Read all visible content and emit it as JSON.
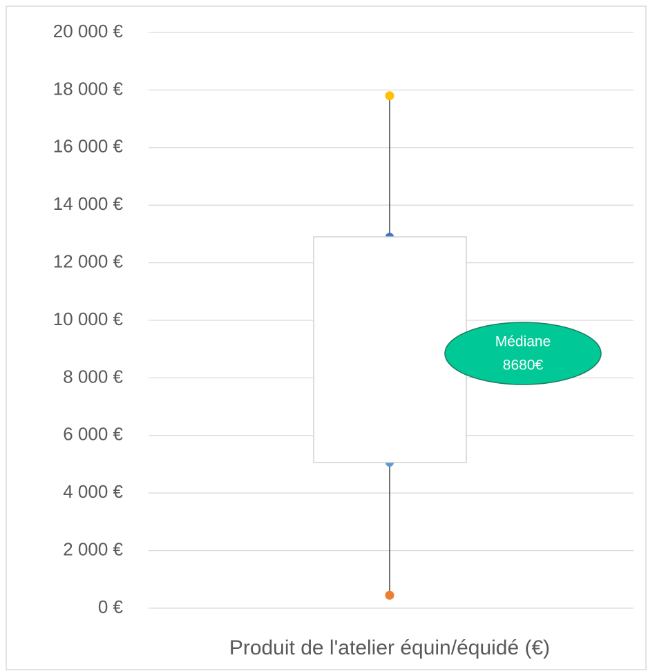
{
  "chart_data": {
    "type": "box",
    "categories": [
      "Produit de l'atelier équin/équidé (€)"
    ],
    "series": [
      {
        "min": 450,
        "q1": 5060,
        "q3": 12900,
        "max": 17800,
        "colors": {
          "min": "#ed7d31",
          "q1": "#5b9bd5",
          "q3": "#4472c4",
          "max": "#ffc000"
        },
        "box_color": "#ffffff",
        "whisker_color": "#404040"
      }
    ],
    "ylim": [
      0,
      20000
    ],
    "yticks": [
      {
        "value": 0,
        "label": "0 €"
      },
      {
        "value": 2000,
        "label": "2 000 €"
      },
      {
        "value": 4000,
        "label": "4 000 €"
      },
      {
        "value": 6000,
        "label": "6 000 €"
      },
      {
        "value": 8000,
        "label": "8 000 €"
      },
      {
        "value": 10000,
        "label": "10 000 €"
      },
      {
        "value": 12000,
        "label": "12 000 €"
      },
      {
        "value": 14000,
        "label": "14 000 €"
      },
      {
        "value": 16000,
        "label": "16 000 €"
      },
      {
        "value": 18000,
        "label": "18 000 €"
      },
      {
        "value": 20000,
        "label": "20 000 €"
      }
    ],
    "grid": true,
    "annotation": {
      "lines": [
        "Médiane",
        "8680€"
      ],
      "color": "#00c896"
    }
  }
}
